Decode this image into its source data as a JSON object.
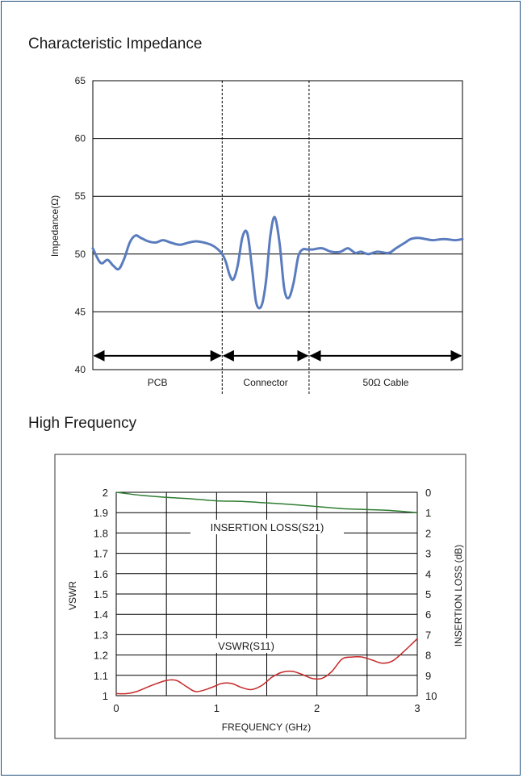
{
  "sections": {
    "impedance_title": "Characteristic Impedance",
    "hf_title": "High Frequency"
  },
  "chart_data": [
    {
      "type": "line",
      "title": "Characteristic Impedance",
      "ylabel": "Impedance(Ω)",
      "ylim": [
        40,
        65
      ],
      "yticks": [
        40,
        45,
        50,
        55,
        60,
        65
      ],
      "grid": true,
      "segments": [
        {
          "label": "PCB",
          "start": 0,
          "end": 0.35
        },
        {
          "label": "Connector",
          "start": 0.35,
          "end": 0.585
        },
        {
          "label": "50Ω Cable",
          "start": 0.585,
          "end": 1.0
        }
      ],
      "series": [
        {
          "color": "#5a7cbe",
          "x": [
            0,
            0.015,
            0.025,
            0.04,
            0.055,
            0.07,
            0.085,
            0.1,
            0.115,
            0.13,
            0.15,
            0.17,
            0.19,
            0.21,
            0.235,
            0.26,
            0.28,
            0.3,
            0.32,
            0.335,
            0.35,
            0.36,
            0.37,
            0.38,
            0.392,
            0.405,
            0.418,
            0.43,
            0.442,
            0.456,
            0.468,
            0.48,
            0.492,
            0.505,
            0.518,
            0.53,
            0.543,
            0.556,
            0.568,
            0.58,
            0.595,
            0.62,
            0.645,
            0.67,
            0.69,
            0.71,
            0.725,
            0.745,
            0.77,
            0.8,
            0.82,
            0.845,
            0.86,
            0.88,
            0.9,
            0.92,
            0.95,
            0.98,
            1.0
          ],
          "y": [
            50.5,
            49.5,
            49.2,
            49.5,
            49.0,
            48.7,
            49.6,
            51.0,
            51.6,
            51.4,
            51.1,
            51.0,
            51.2,
            51.0,
            50.8,
            51.0,
            51.1,
            51.0,
            50.8,
            50.5,
            50.0,
            49.3,
            48.2,
            47.8,
            49.0,
            51.5,
            51.8,
            49.0,
            45.8,
            45.5,
            47.5,
            51.5,
            53.2,
            51.0,
            47.0,
            46.2,
            47.5,
            49.8,
            50.4,
            50.4,
            50.4,
            50.5,
            50.2,
            50.2,
            50.5,
            50.1,
            50.2,
            50.0,
            50.2,
            50.1,
            50.5,
            51.0,
            51.3,
            51.4,
            51.3,
            51.2,
            51.3,
            51.2,
            51.3
          ]
        }
      ]
    },
    {
      "type": "line",
      "xlabel": "FREQUENCY (GHz)",
      "ylabel": "VSWR",
      "y2label": "INSERTION LOSS (dB)",
      "xlim": [
        0,
        3
      ],
      "ylim": [
        1,
        2
      ],
      "y2lim": [
        0,
        10
      ],
      "xticks": [
        0,
        1,
        2,
        3
      ],
      "yticks": [
        1,
        1.1,
        1.2,
        1.3,
        1.4,
        1.5,
        1.6,
        1.7,
        1.8,
        1.9,
        2
      ],
      "y2ticks": [
        0,
        1,
        2,
        3,
        4,
        5,
        6,
        7,
        8,
        9,
        10
      ],
      "grid": true,
      "annotations": [
        "INSERTION LOSS(S21)",
        "VSWR(S11)"
      ],
      "series": [
        {
          "name": "INSERTION LOSS(S21)",
          "axis": "right",
          "color": "#2e7d32",
          "x": [
            0,
            0.25,
            0.5,
            0.75,
            1.0,
            1.25,
            1.5,
            1.75,
            2.0,
            2.25,
            2.5,
            2.75,
            3.0
          ],
          "y": [
            0.0,
            0.15,
            0.25,
            0.32,
            0.42,
            0.45,
            0.52,
            0.6,
            0.7,
            0.8,
            0.85,
            0.9,
            1.0
          ]
        },
        {
          "name": "VSWR(S11)",
          "axis": "left",
          "color": "#c62828",
          "x": [
            0,
            0.1,
            0.2,
            0.35,
            0.5,
            0.6,
            0.7,
            0.8,
            0.95,
            1.05,
            1.15,
            1.25,
            1.35,
            1.45,
            1.55,
            1.65,
            1.75,
            1.85,
            1.95,
            2.05,
            2.15,
            2.25,
            2.35,
            2.45,
            2.55,
            2.65,
            2.75,
            2.85,
            3.0
          ],
          "y": [
            1.01,
            1.01,
            1.02,
            1.05,
            1.075,
            1.075,
            1.045,
            1.02,
            1.04,
            1.06,
            1.06,
            1.04,
            1.03,
            1.05,
            1.09,
            1.115,
            1.12,
            1.105,
            1.085,
            1.085,
            1.12,
            1.18,
            1.19,
            1.19,
            1.175,
            1.16,
            1.17,
            1.21,
            1.28
          ]
        }
      ]
    }
  ]
}
